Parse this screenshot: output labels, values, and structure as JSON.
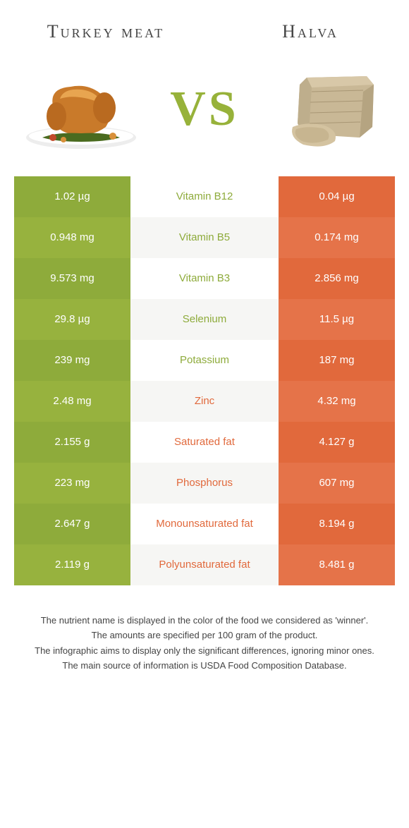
{
  "colors": {
    "green": "#8eab3b",
    "green_alt": "#97b23e",
    "orange": "#e1693c",
    "orange_alt": "#e57349",
    "mid_bg": "#ffffff",
    "mid_alt": "#f6f6f4"
  },
  "header": {
    "left_title": "Turkey meat",
    "right_title": "Halva",
    "vs": "VS"
  },
  "rows": [
    {
      "left": "1.02 µg",
      "mid": "Vitamin B12",
      "right": "0.04 µg",
      "winner": "left"
    },
    {
      "left": "0.948 mg",
      "mid": "Vitamin B5",
      "right": "0.174 mg",
      "winner": "left"
    },
    {
      "left": "9.573 mg",
      "mid": "Vitamin B3",
      "right": "2.856 mg",
      "winner": "left"
    },
    {
      "left": "29.8 µg",
      "mid": "Selenium",
      "right": "11.5 µg",
      "winner": "left"
    },
    {
      "left": "239 mg",
      "mid": "Potassium",
      "right": "187 mg",
      "winner": "left"
    },
    {
      "left": "2.48 mg",
      "mid": "Zinc",
      "right": "4.32 mg",
      "winner": "right"
    },
    {
      "left": "2.155 g",
      "mid": "Saturated fat",
      "right": "4.127 g",
      "winner": "right"
    },
    {
      "left": "223 mg",
      "mid": "Phosphorus",
      "right": "607 mg",
      "winner": "right"
    },
    {
      "left": "2.647 g",
      "mid": "Monounsaturated fat",
      "right": "8.194 g",
      "winner": "right"
    },
    {
      "left": "2.119 g",
      "mid": "Polyunsaturated fat",
      "right": "8.481 g",
      "winner": "right"
    }
  ],
  "footnotes": [
    "The nutrient name is displayed in the color of the food we considered as 'winner'.",
    "The amounts are specified per 100 gram of the product.",
    "The infographic aims to display only the significant differences, ignoring minor ones.",
    "The main source of information is USDA Food Composition Database."
  ]
}
